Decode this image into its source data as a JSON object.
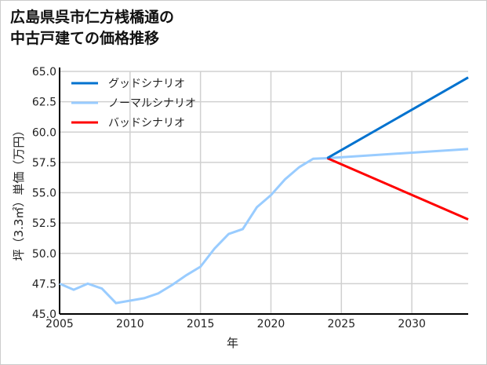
{
  "chart_data": {
    "type": "line",
    "title_lines": [
      "広島県呉市仁方桟橋通の",
      "中古戸建ての価格推移"
    ],
    "xlabel": "年",
    "ylabel": "坪（3.3㎡）単価（万円）",
    "xlim": [
      2005,
      2034
    ],
    "ylim": [
      45,
      65
    ],
    "xticks": [
      2005,
      2010,
      2015,
      2020,
      2025,
      2030
    ],
    "yticks": [
      "45.0",
      "47.5",
      "50.0",
      "52.5",
      "55.0",
      "57.5",
      "60.0",
      "62.5",
      "65.0"
    ],
    "grid": true,
    "legend_position": "top-left",
    "series": [
      {
        "name": "グッドシナリオ",
        "color": "#0072cf",
        "x": [
          2024,
          2034
        ],
        "values": [
          57.85,
          64.5
        ]
      },
      {
        "name": "ノーマルシナリオ",
        "color": "#99ccff",
        "x": [
          2005,
          2006,
          2007,
          2008,
          2009,
          2010,
          2011,
          2012,
          2013,
          2014,
          2015,
          2016,
          2017,
          2018,
          2019,
          2020,
          2021,
          2022,
          2023,
          2024,
          2034
        ],
        "values": [
          47.5,
          47.0,
          47.5,
          47.1,
          45.9,
          46.1,
          46.3,
          46.7,
          47.4,
          48.2,
          48.9,
          50.4,
          51.6,
          52.0,
          53.8,
          54.8,
          56.1,
          57.1,
          57.8,
          57.85,
          58.6
        ]
      },
      {
        "name": "バッドシナリオ",
        "color": "#ff0000",
        "x": [
          2024,
          2034
        ],
        "values": [
          57.85,
          52.8
        ]
      }
    ]
  }
}
